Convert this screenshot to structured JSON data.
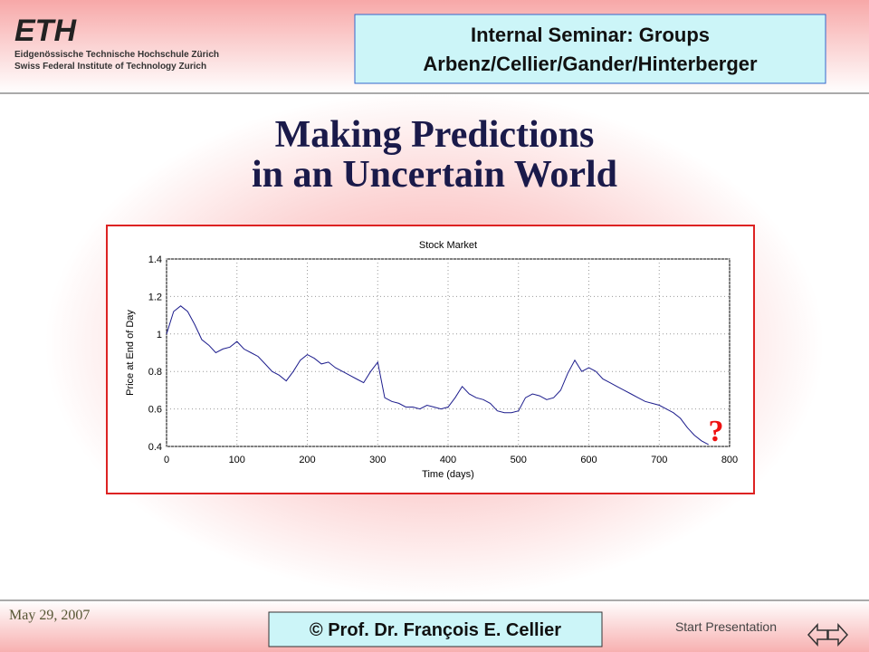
{
  "header": {
    "logo": "ETH",
    "logo_line1": "Eidgenössische Technische Hochschule Zürich",
    "logo_line2": "Swiss Federal Institute of Technology Zurich",
    "seminar_line1": "Internal Seminar: Groups",
    "seminar_line2": "Arbenz/Cellier/Gander/Hinterberger"
  },
  "title": {
    "line1": "Making Predictions",
    "line2": "in an Uncertain World"
  },
  "chart_data": {
    "type": "line",
    "title": "Stock Market",
    "x_label": "Time (days)",
    "y_label": "Price at End of Day",
    "x": [
      0,
      10,
      20,
      30,
      40,
      50,
      60,
      70,
      80,
      90,
      100,
      110,
      120,
      130,
      140,
      150,
      160,
      170,
      180,
      190,
      200,
      210,
      220,
      230,
      240,
      250,
      260,
      270,
      280,
      290,
      300,
      310,
      320,
      330,
      340,
      350,
      360,
      370,
      380,
      390,
      400,
      410,
      420,
      430,
      440,
      450,
      460,
      470,
      480,
      490,
      500,
      510,
      520,
      530,
      540,
      550,
      560,
      570,
      580,
      590,
      600,
      610,
      620,
      630,
      640,
      650,
      660,
      670,
      680,
      690,
      700,
      710,
      720,
      730,
      740,
      750,
      760,
      770
    ],
    "series": [
      {
        "color": "#1c1c8c",
        "values": [
          1.0,
          1.12,
          1.15,
          1.12,
          1.05,
          0.97,
          0.94,
          0.9,
          0.92,
          0.93,
          0.96,
          0.92,
          0.9,
          0.88,
          0.84,
          0.8,
          0.78,
          0.75,
          0.8,
          0.86,
          0.89,
          0.87,
          0.84,
          0.85,
          0.82,
          0.8,
          0.78,
          0.76,
          0.74,
          0.8,
          0.85,
          0.66,
          0.64,
          0.63,
          0.61,
          0.61,
          0.6,
          0.62,
          0.61,
          0.6,
          0.61,
          0.66,
          0.72,
          0.68,
          0.66,
          0.65,
          0.63,
          0.59,
          0.58,
          0.58,
          0.59,
          0.66,
          0.68,
          0.67,
          0.65,
          0.66,
          0.7,
          0.79,
          0.86,
          0.8,
          0.82,
          0.8,
          0.76,
          0.74,
          0.72,
          0.7,
          0.68,
          0.66,
          0.64,
          0.63,
          0.62,
          0.6,
          0.58,
          0.55,
          0.5,
          0.46,
          0.43,
          0.41
        ]
      }
    ],
    "xlim": [
      0,
      800
    ],
    "xticks": [
      0,
      100,
      200,
      300,
      400,
      500,
      600,
      700,
      800
    ],
    "ylim": [
      0.4,
      1.4
    ],
    "yticks": [
      0.4,
      0.6,
      0.8,
      1,
      1.2,
      1.4
    ],
    "grid": true,
    "annotation": "?"
  },
  "footer": {
    "date": "May 29, 2007",
    "copyright": "© Prof. Dr. François E. Cellier",
    "start": "Start Presentation"
  }
}
